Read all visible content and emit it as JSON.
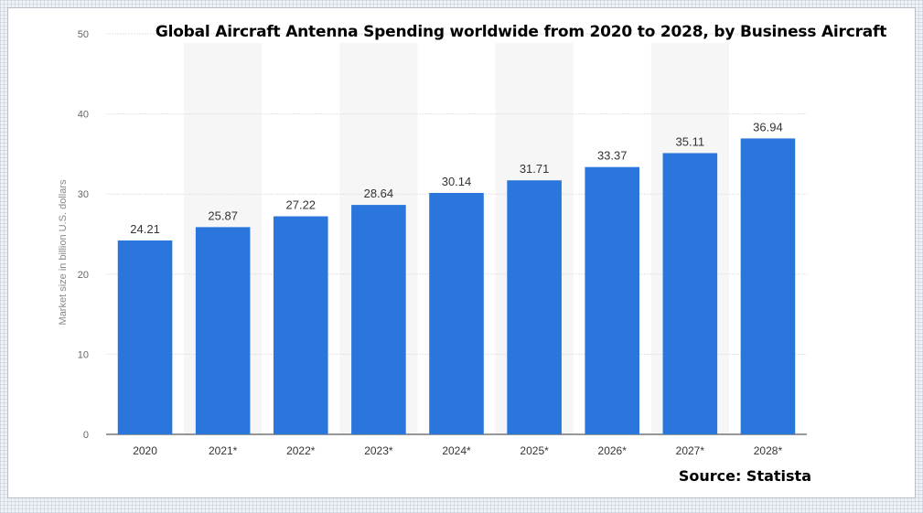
{
  "chart_data": {
    "type": "bar",
    "title": "Global Aircraft Antenna Spending worldwide from 2020 to 2028, by Business Aircraft",
    "ylabel": "Market size in billion U.S. dollars",
    "xlabel": "",
    "categories": [
      "2020",
      "2021*",
      "2022*",
      "2023*",
      "2024*",
      "2025*",
      "2026*",
      "2027*",
      "2028*"
    ],
    "values": [
      24.21,
      25.87,
      27.22,
      28.64,
      30.14,
      31.71,
      33.37,
      35.11,
      36.94
    ],
    "value_labels": [
      "24.21",
      "25.87",
      "27.22",
      "28.64",
      "30.14",
      "31.71",
      "33.37",
      "35.11",
      "36.94"
    ],
    "ylim": [
      0,
      50
    ],
    "yticks": [
      "0",
      "10",
      "20",
      "30",
      "40",
      "50"
    ],
    "grid": true,
    "bar_color": "#2a76dd",
    "source": "Source: Statista"
  }
}
